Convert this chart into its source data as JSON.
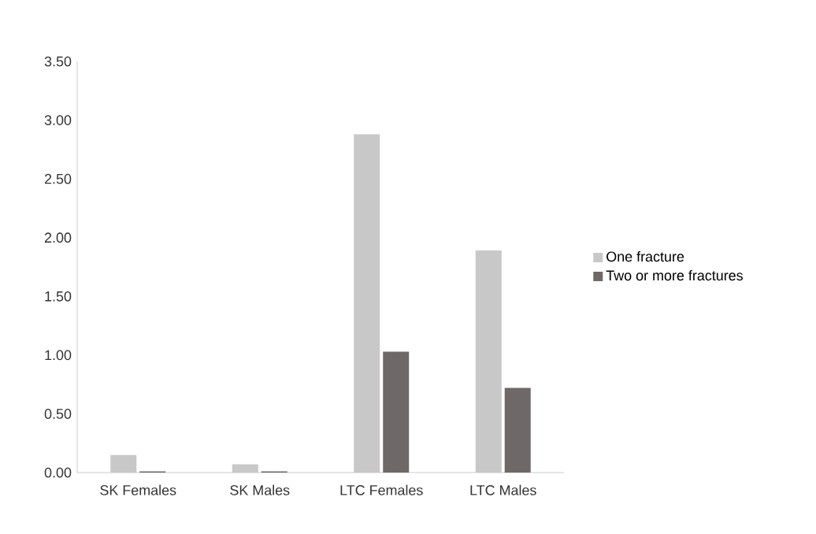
{
  "chart_data": {
    "type": "bar",
    "categories": [
      "SK Females",
      "SK Males",
      "LTC Females",
      "LTC Males"
    ],
    "series": [
      {
        "name": "One fracture",
        "color": "#c8c8c8",
        "values": [
          0.15,
          0.07,
          2.88,
          1.89
        ]
      },
      {
        "name": "Two or more fractures",
        "color": "#6e6868",
        "values": [
          0.01,
          0.01,
          1.03,
          0.72
        ]
      }
    ],
    "ylim": [
      0,
      3.5
    ],
    "yticks": [
      {
        "value": 0,
        "label": "0.00"
      },
      {
        "value": 0.5,
        "label": "0.50"
      },
      {
        "value": 1,
        "label": "1.00"
      },
      {
        "value": 1.5,
        "label": "1.50"
      },
      {
        "value": 2,
        "label": "2.00"
      },
      {
        "value": 2.5,
        "label": "2.50"
      },
      {
        "value": 3,
        "label": "3.00"
      },
      {
        "value": 3.5,
        "label": "3.50"
      }
    ],
    "grid": false,
    "legend": "right"
  }
}
